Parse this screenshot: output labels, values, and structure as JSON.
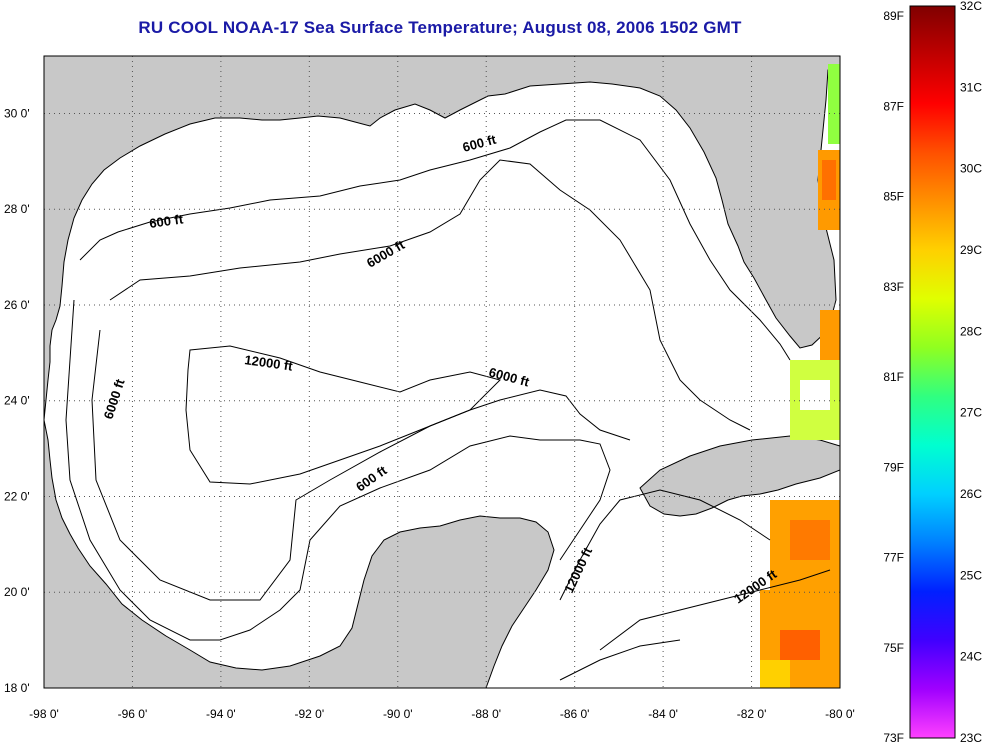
{
  "title": "RU COOL  NOAA-17  Sea Surface Temperature;  August 08, 2006 1502 GMT",
  "colors": {
    "land": "#c8c8c8",
    "water": "#ffffff",
    "contour": "#000000",
    "title": "#1a1aa6"
  },
  "map": {
    "lon_range": [
      -98,
      -80
    ],
    "lat_range": [
      18,
      31.2
    ],
    "lon_ticks": [
      "-98 0'",
      "-96 0'",
      "-94 0'",
      "-92 0'",
      "-90 0'",
      "-88 0'",
      "-86 0'",
      "-84 0'",
      "-82 0'",
      "-80 0'"
    ],
    "lat_ticks": [
      "30 0'",
      "28 0'",
      "26 0'",
      "24 0'",
      "22 0'",
      "20 0'",
      "18 0'"
    ],
    "grid": "dotted",
    "contour_labels": [
      "600 ft",
      "600 ft",
      "600 ft",
      "6000 ft",
      "6000 ft",
      "6000 ft",
      "12000 ft",
      "12000 ft",
      "12000 ft"
    ]
  },
  "colorbar": {
    "fahrenheit_labels": [
      "89F",
      "87F",
      "85F",
      "83F",
      "81F",
      "79F",
      "77F",
      "75F",
      "73F"
    ],
    "celsius_labels": [
      "32C",
      "31C",
      "30C",
      "29C",
      "28C",
      "27C",
      "26C",
      "25C",
      "24C",
      "23C"
    ],
    "gradient_colors": [
      "#800000",
      "#c00000",
      "#ff0000",
      "#ff5000",
      "#ff9000",
      "#ffd000",
      "#e0ff00",
      "#90ff20",
      "#30ff80",
      "#00ffd0",
      "#00d0ff",
      "#0080ff",
      "#0020ff",
      "#4000ff",
      "#a000ff",
      "#ff40ff"
    ]
  }
}
